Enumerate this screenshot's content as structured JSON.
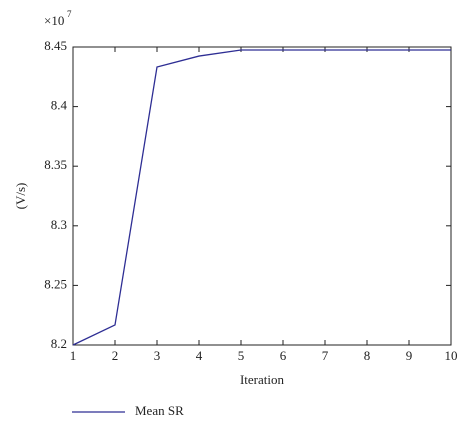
{
  "chart_data": {
    "type": "line",
    "y_label": "(V/s)",
    "x_label": "Iteration",
    "multiplier": {
      "base": "×10",
      "exponent": "7"
    },
    "x": [
      1,
      2,
      3,
      4,
      5,
      6,
      7,
      8,
      9,
      10
    ],
    "series": [
      {
        "name": "Mean SR",
        "color": "#2e2e94",
        "values": [
          8.2,
          8.2168,
          8.4332,
          8.4424,
          8.4475,
          8.4475,
          8.4475,
          8.4475,
          8.4475,
          8.4475
        ]
      }
    ],
    "xlim": [
      1,
      10
    ],
    "xticks": [
      1,
      2,
      3,
      4,
      5,
      6,
      7,
      8,
      9,
      10
    ],
    "ylim": [
      8.2,
      8.45
    ],
    "yticks": [
      8.2,
      8.25,
      8.3,
      8.35,
      8.4,
      8.45
    ],
    "grid": false,
    "legend": "bottom-left"
  }
}
